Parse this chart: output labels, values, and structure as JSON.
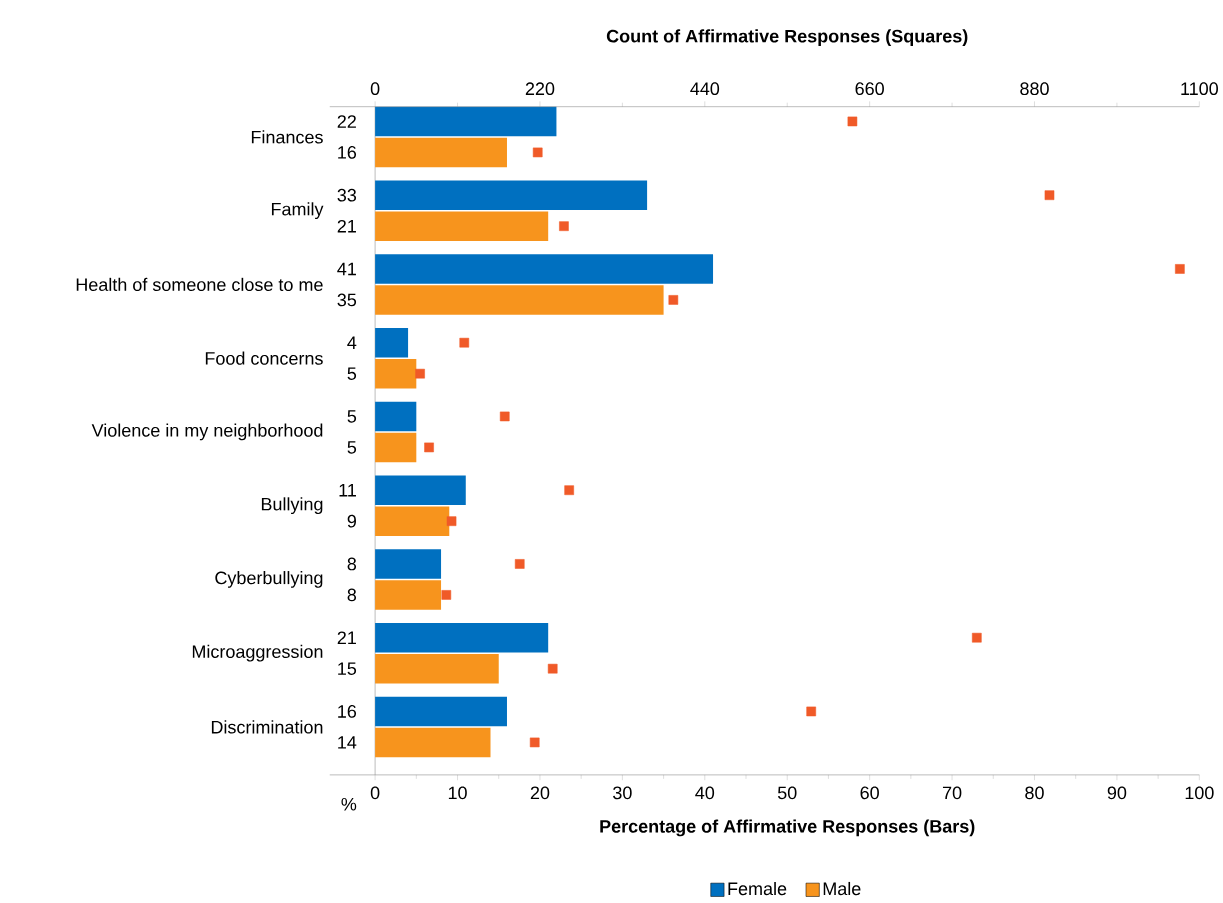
{
  "chart_data": {
    "type": "bar",
    "orientation": "horizontal",
    "xlabel": "Percentage of Affirmative Responses (Bars)",
    "x2label": "Count of Affirmative Responses (Squares)",
    "categories": [
      "Finances",
      "Family",
      "Health of someone close to me",
      "Food concerns",
      "Violence in my neighborhood",
      "Bullying",
      "Cyberbullying",
      "Microaggression",
      "Discrimination"
    ],
    "series": [
      {
        "name": "Female",
        "color": "#0070c0",
        "data_labels": true,
        "values": [
          22,
          33,
          41,
          4,
          5,
          11,
          8,
          21,
          16
        ]
      },
      {
        "name": "Male",
        "color": "#f7941d",
        "data_labels": true,
        "values": [
          16,
          21,
          35,
          5,
          5,
          9,
          8,
          15,
          14
        ]
      },
      {
        "type": "scatter",
        "axis": "x2",
        "marker": "square",
        "color": "#f05a28",
        "values": [
          637,
          900,
          1074,
          119,
          173,
          259,
          193,
          803,
          582
        ]
      },
      {
        "type": "scatter",
        "axis": "x2",
        "marker": "square",
        "color": "#f05a28",
        "values": [
          217,
          252,
          398,
          60,
          72,
          102,
          95,
          237,
          213
        ]
      }
    ],
    "xlim": [
      0,
      100
    ],
    "xticks": [
      0,
      10,
      20,
      30,
      40,
      50,
      60,
      70,
      80,
      90,
      100
    ],
    "x2lim": [
      0,
      1100
    ],
    "x2ticks": [
      0,
      220,
      440,
      660,
      880,
      1100
    ],
    "legend": "bottom",
    "annotations": [
      "%"
    ]
  }
}
